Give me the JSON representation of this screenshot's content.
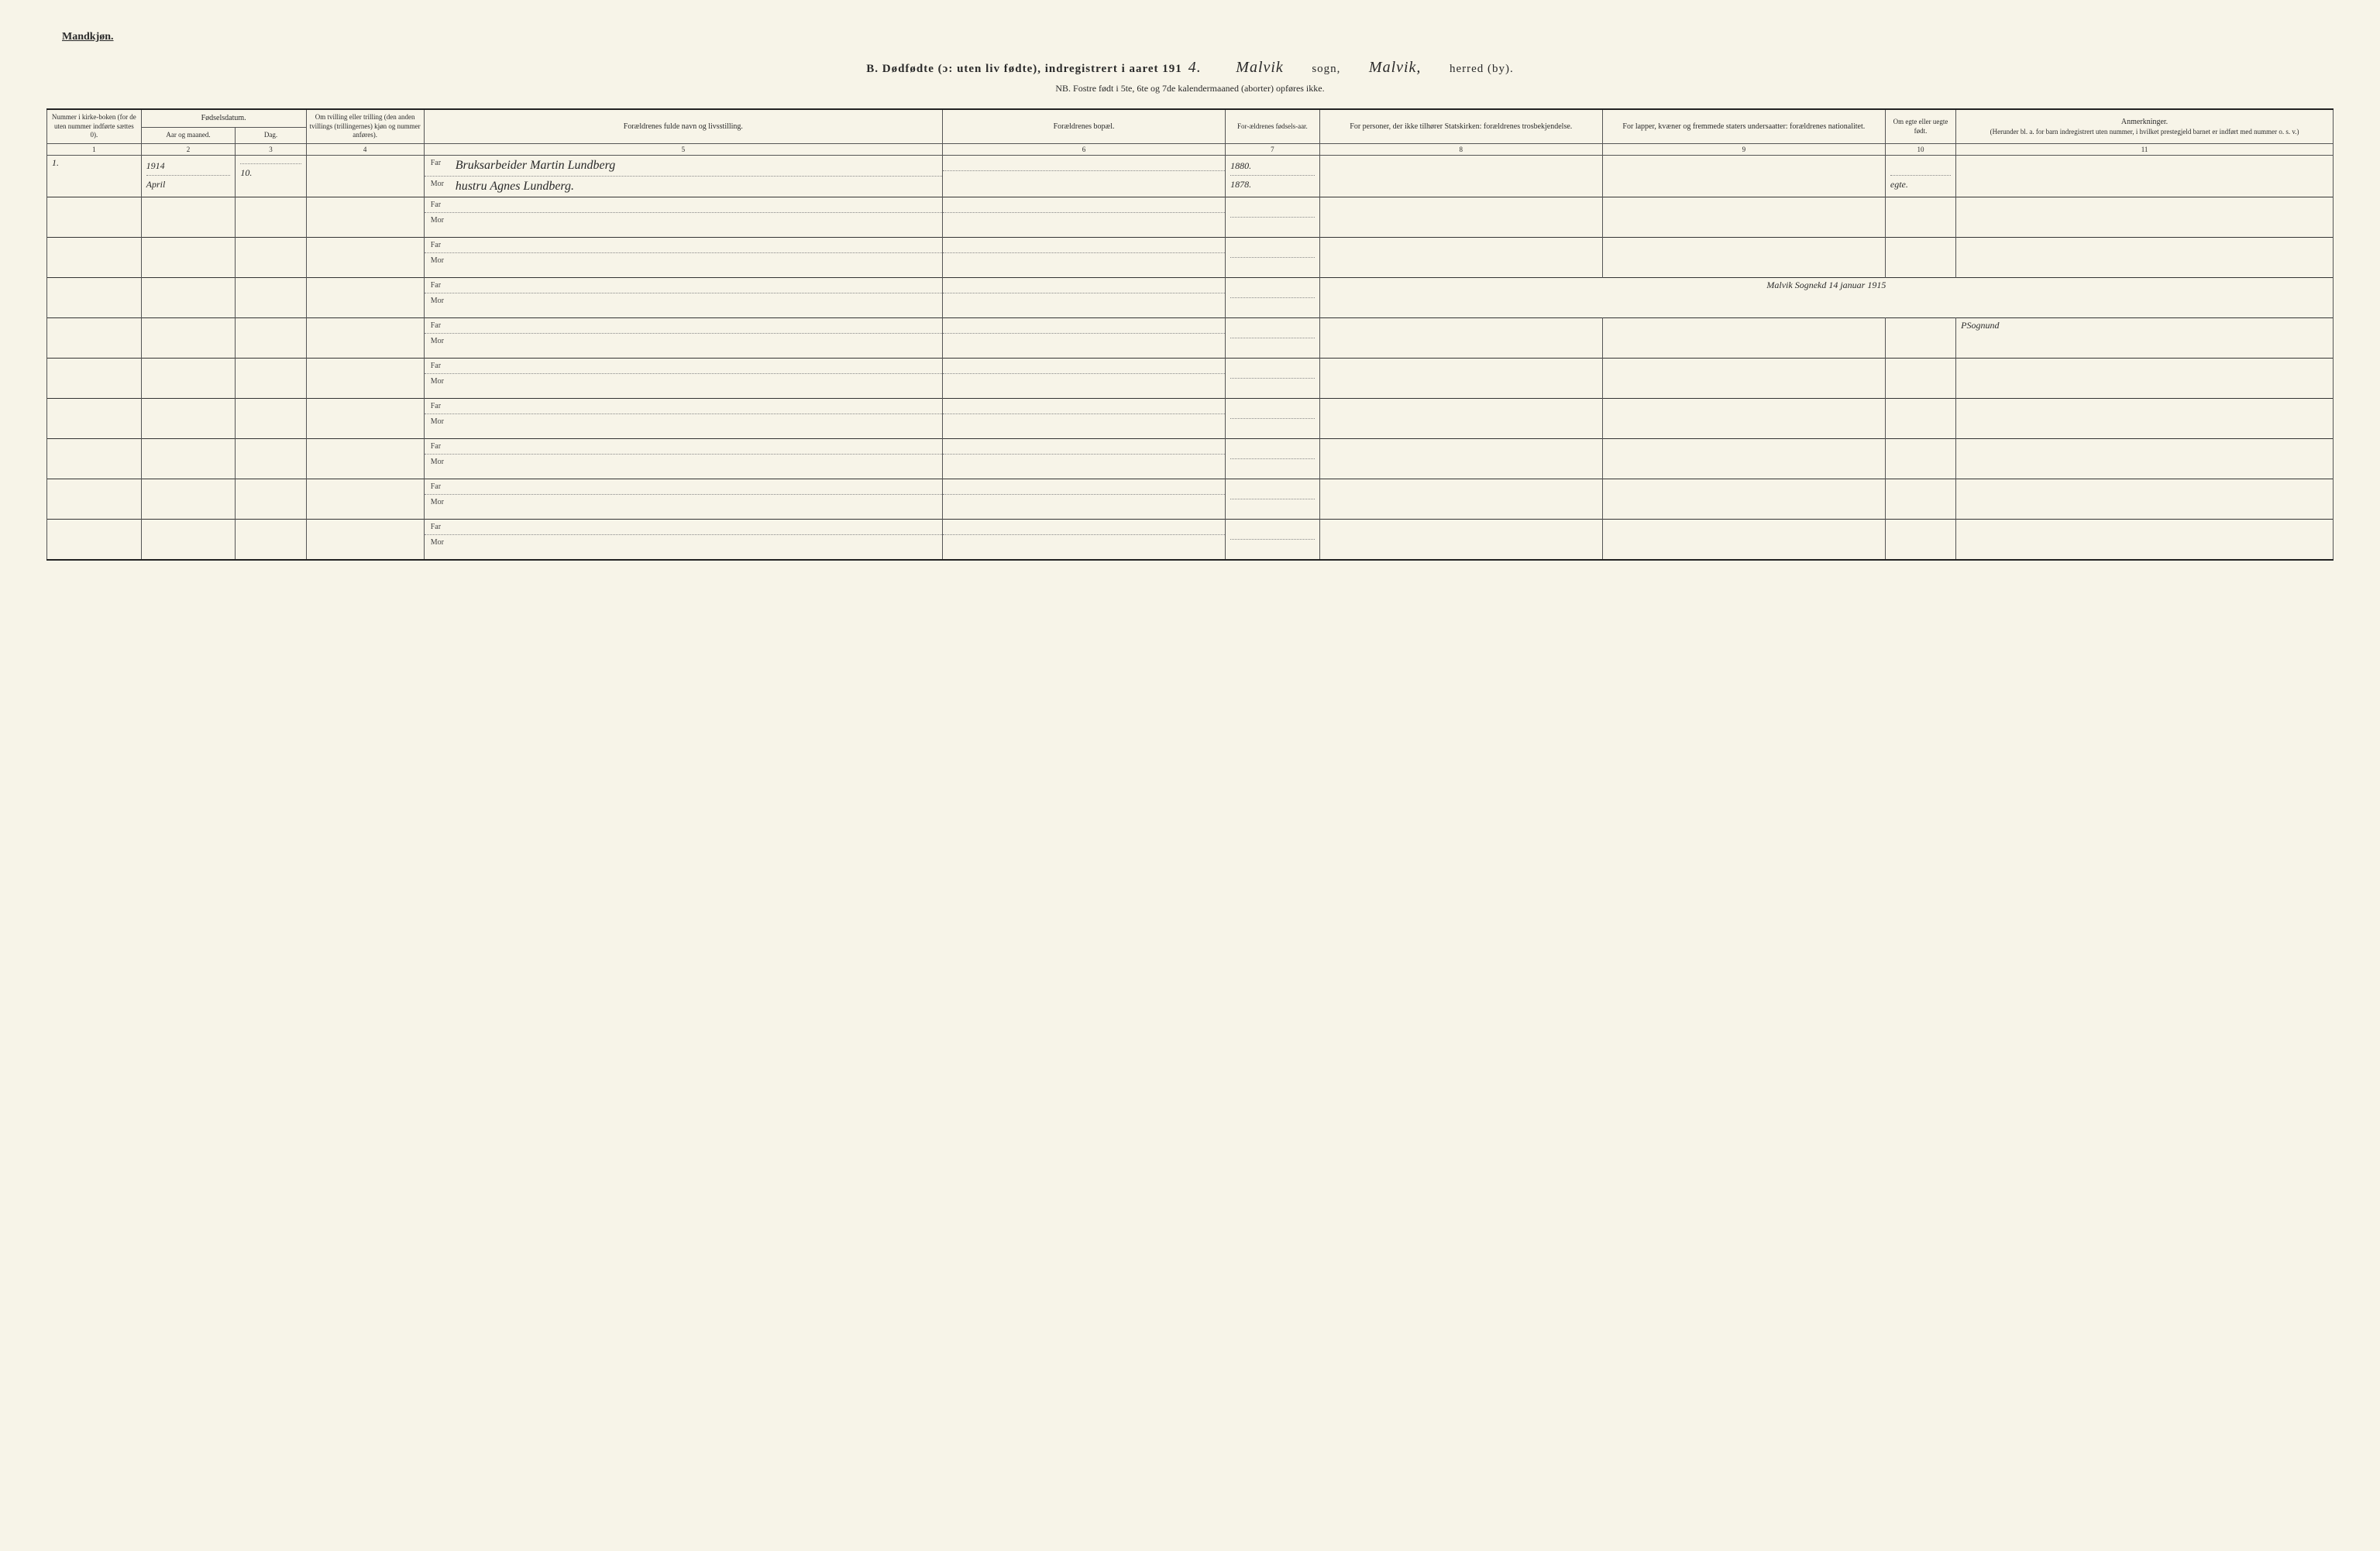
{
  "gender_label": "Mandkjøn.",
  "title": {
    "letter": "B.",
    "main": "Dødfødte (ɔ: uten liv fødte), indregistrert i aaret 191",
    "year_suffix": "4.",
    "parish": "Malvik",
    "sogn_label": "sogn,",
    "district": "Malvik,",
    "herred_label": "herred",
    "by_struck": "(by)."
  },
  "subtitle": "NB. Fostre født i 5te, 6te og 7de kalendermaaned (aborter) opføres ikke.",
  "headers": {
    "col1": "Nummer i kirke-boken (for de uten nummer indførte sættes 0).",
    "col2_group": "Fødselsdatum.",
    "col2a": "Aar og maaned.",
    "col2b": "Dag.",
    "col4": "Om tvilling eller trilling (den anden tvillings (trillingernes) kjøn og nummer anføres).",
    "col5": "Forældrenes fulde navn og livsstilling.",
    "col6": "Forældrenes bopæl.",
    "col7": "For-ældrenes fødsels-aar.",
    "col8": "For personer, der ikke tilhører Statskirken: forældrenes trosbekjendelse.",
    "col9": "For lapper, kvæner og fremmede staters undersaatter: forældrenes nationalitet.",
    "col10": "Om egte eller uegte født.",
    "col11": "Anmerkninger.",
    "col11_sub": "(Herunder bl. a. for barn indregistrert uten nummer, i hvilket prestegjeld barnet er indført med nummer o. s. v.)"
  },
  "colnums": [
    "1",
    "2",
    "3",
    "4",
    "5",
    "6",
    "7",
    "8",
    "9",
    "10",
    "11"
  ],
  "far_label": "Far",
  "mor_label": "Mor",
  "entries": [
    {
      "num": "1.",
      "year_line": "1914",
      "month": "April",
      "day": "10.",
      "twin": "",
      "far": "Bruksarbeider Martin Lundberg",
      "mor": "hustru Agnes Lundberg.",
      "bopæl": "",
      "far_year": "1880.",
      "mor_year": "1878.",
      "rel": "",
      "nat": "",
      "egte": "egte.",
      "anm": ""
    }
  ],
  "blank_rows": 9,
  "certification": "Malvik Sognekd 14 januar 1915",
  "signature": "PSognund"
}
